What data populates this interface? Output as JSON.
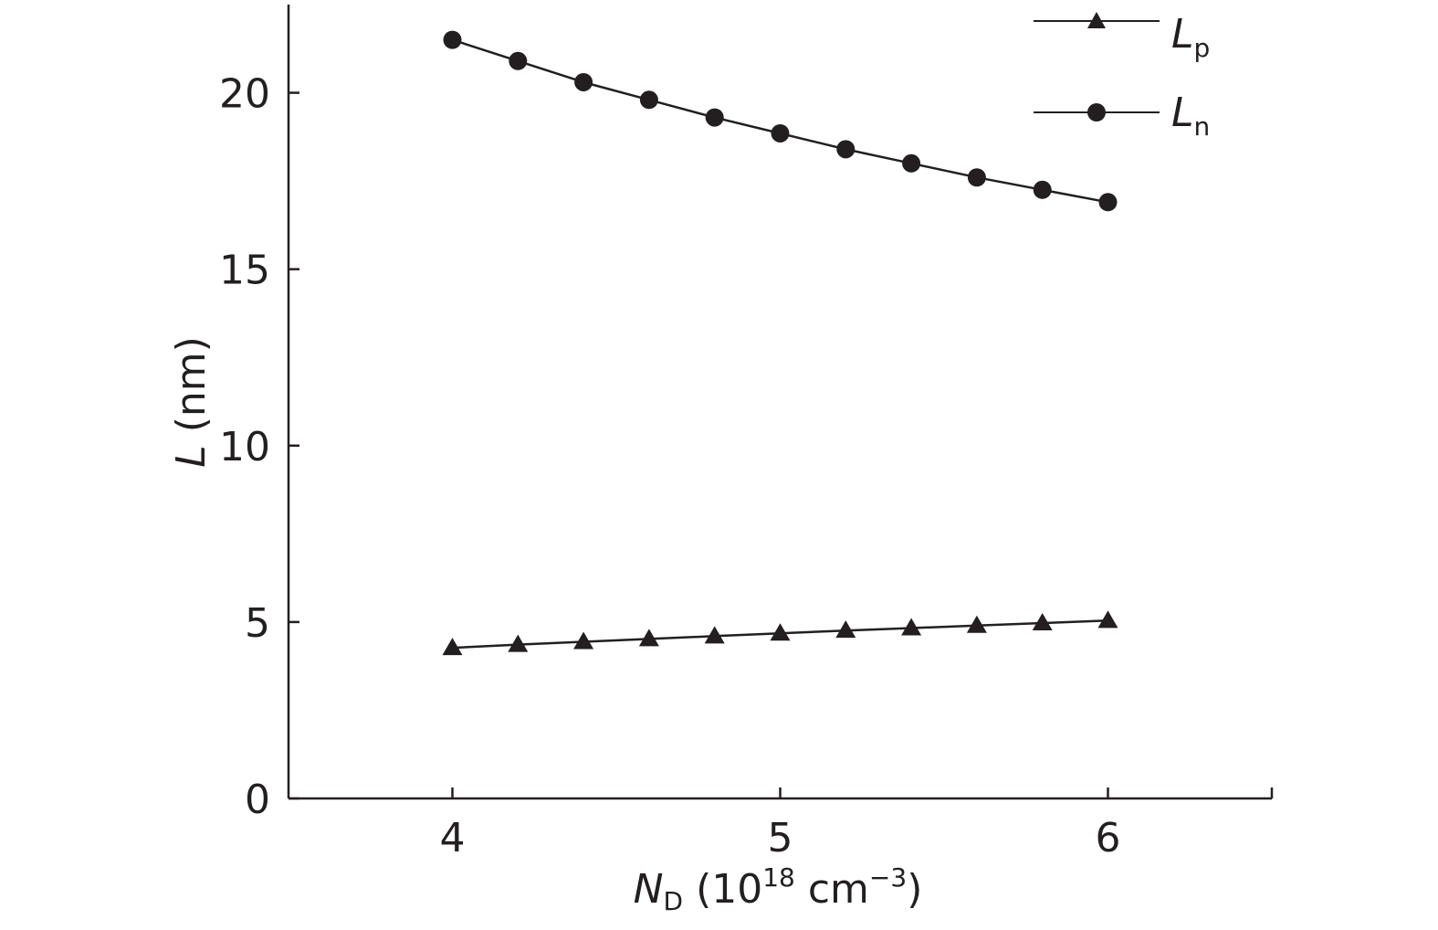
{
  "chart_data": {
    "type": "line",
    "x": [
      4.0,
      4.2,
      4.4,
      4.6,
      4.8,
      5.0,
      5.2,
      5.4,
      5.6,
      5.8,
      6.0
    ],
    "series": [
      {
        "name": "L",
        "subscript": "p",
        "marker": "triangle",
        "values": [
          4.27,
          4.36,
          4.44,
          4.52,
          4.6,
          4.68,
          4.76,
          4.83,
          4.9,
          4.97,
          5.04
        ]
      },
      {
        "name": "L",
        "subscript": "n",
        "marker": "circle",
        "values": [
          21.5,
          20.9,
          20.3,
          19.8,
          19.3,
          18.85,
          18.4,
          18.0,
          17.6,
          17.25,
          16.9
        ]
      }
    ],
    "xlim": [
      3.5,
      6.5
    ],
    "ylim": [
      0,
      22.5
    ],
    "xticks": [
      4,
      5,
      6
    ],
    "yticks": [
      0,
      5,
      10,
      15,
      20
    ],
    "xlabel": {
      "main": "N",
      "sub": "D",
      "rest": " (10",
      "sup": "18",
      "rest2": " cm",
      "sup2": "−3",
      "end": ")"
    },
    "ylabel": {
      "main": "L",
      "rest": " (nm)"
    },
    "legend_position": "top-right",
    "grid": false,
    "color": "#231f20"
  }
}
